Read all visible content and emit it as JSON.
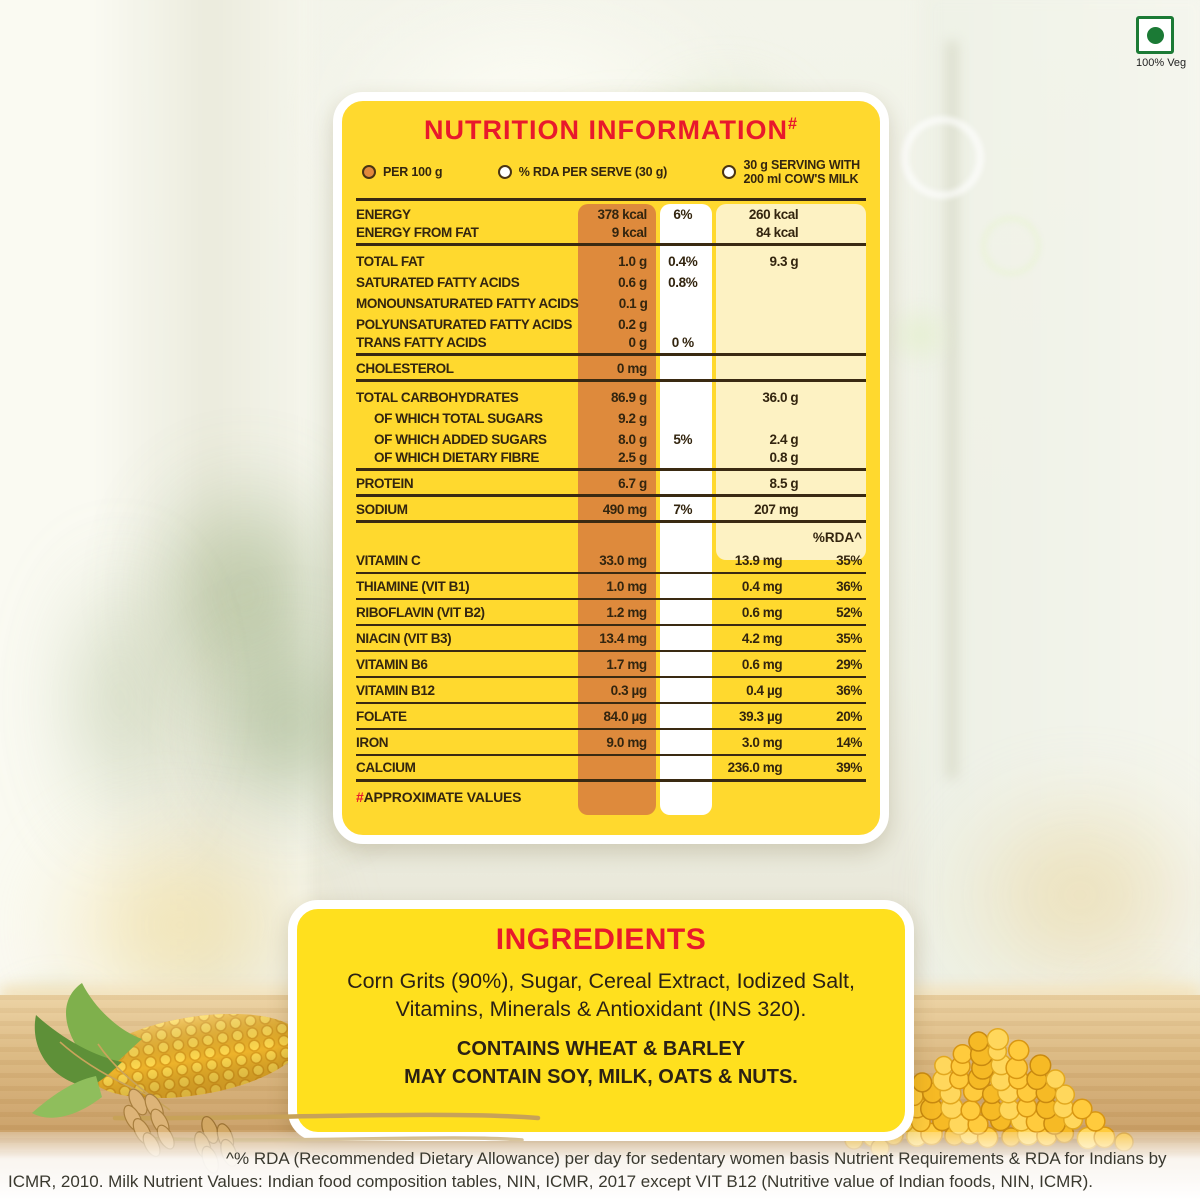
{
  "colors": {
    "accent_red": "#E8192C",
    "panel_yellow": "#FFD92E",
    "per100_band": "#DE8A3C",
    "milk_band": "#FDF2C3",
    "veg_green": "#1B7A35"
  },
  "veg_mark": {
    "label": "100% Veg"
  },
  "nutrition": {
    "title": "NUTRITION INFORMATION",
    "title_sup": "#",
    "legend": [
      {
        "swatch": "#E2893B",
        "label": "PER 100 g"
      },
      {
        "swatch": "#FFFFFF",
        "label": "% RDA PER SERVE (30 g)"
      },
      {
        "swatch": "#FFFFFF",
        "label": "30 g SERVING WITH\n200 ml COW'S MILK"
      }
    ],
    "rda_header": "%RDA^",
    "rows": [
      {
        "name": "ENERGY",
        "per100": "378 kcal",
        "rda": "6%",
        "milk": "260 kcal"
      },
      {
        "name": "ENERGY FROM FAT",
        "per100": "9 kcal",
        "milk": "84 kcal",
        "divider": true
      },
      {
        "name": "TOTAL FAT",
        "per100": "1.0 g",
        "rda": "0.4%",
        "milk": "9.3 g"
      },
      {
        "name": "SATURATED FATTY ACIDS",
        "per100": "0.6 g",
        "rda": "0.8%"
      },
      {
        "name": "MONOUNSATURATED FATTY ACIDS",
        "per100": "0.1 g"
      },
      {
        "name": "POLYUNSATURATED FATTY ACIDS",
        "per100": "0.2 g"
      },
      {
        "name": "TRANS FATTY ACIDS",
        "per100": "0 g",
        "rda": "0 %",
        "divider": true
      },
      {
        "name": "CHOLESTEROL",
        "per100": "0 mg",
        "divider": true
      },
      {
        "name": "TOTAL CARBOHYDRATES",
        "per100": "86.9 g",
        "milk": "36.0 g"
      },
      {
        "name": "OF WHICH TOTAL SUGARS",
        "indent": true,
        "per100": "9.2 g"
      },
      {
        "name": "OF WHICH ADDED SUGARS",
        "indent": true,
        "per100": "8.0 g",
        "rda": "5%",
        "milk": "2.4 g"
      },
      {
        "name": "OF WHICH DIETARY FIBRE",
        "indent": true,
        "per100": "2.5 g",
        "milk": "0.8 g",
        "divider": true
      },
      {
        "name": "PROTEIN",
        "per100": "6.7 g",
        "milk": "8.5 g",
        "divider": true
      },
      {
        "name": "SODIUM",
        "per100": "490 mg",
        "rda": "7%",
        "milk": "207 mg",
        "divider": true
      },
      {
        "name": "VITAMIN C",
        "vit": true,
        "header_before": true,
        "per100": "33.0 mg",
        "milk": "13.9 mg",
        "rda2": "35%",
        "divider": true
      },
      {
        "name": "THIAMINE (VIT B1)",
        "vit": true,
        "per100": "1.0 mg",
        "milk": "0.4 mg",
        "rda2": "36%",
        "divider": true
      },
      {
        "name": "RIBOFLAVIN (VIT B2)",
        "vit": true,
        "per100": "1.2 mg",
        "milk": "0.6 mg",
        "rda2": "52%",
        "divider": true
      },
      {
        "name": "NIACIN (VIT B3)",
        "vit": true,
        "per100": "13.4 mg",
        "milk": "4.2 mg",
        "rda2": "35%",
        "divider": true
      },
      {
        "name": "VITAMIN B6",
        "vit": true,
        "per100": "1.7 mg",
        "milk": "0.6 mg",
        "rda2": "29%",
        "divider": true
      },
      {
        "name": "VITAMIN B12",
        "vit": true,
        "per100": "0.3 µg",
        "milk": "0.4 µg",
        "rda2": "36%",
        "divider": true
      },
      {
        "name": "FOLATE",
        "vit": true,
        "per100": "84.0 µg",
        "milk": "39.3 µg",
        "rda2": "20%",
        "divider": true
      },
      {
        "name": "IRON",
        "vit": true,
        "per100": "9.0 mg",
        "milk": "3.0 mg",
        "rda2": "14%",
        "divider": true
      },
      {
        "name": "CALCIUM",
        "vit": true,
        "milk": "236.0 mg",
        "rda2": "39%",
        "divider": true
      }
    ],
    "note_symbol": "#",
    "note_text": "APPROXIMATE VALUES"
  },
  "ingredients": {
    "title": "INGREDIENTS",
    "text": "Corn Grits (90%), Sugar, Cereal Extract, Iodized Salt, Vitamins, Minerals & Antioxidant (INS 320).",
    "contains": "CONTAINS WHEAT & BARLEY",
    "may_contain": "MAY CONTAIN SOY, MILK, OATS & NUTS."
  },
  "footer": {
    "note": "^% RDA (Recommended Dietary Allowance) per day for sedentary women basis Nutrient Requirements & RDA for Indians by ICMR, 2010. Milk Nutrient Values: Indian food composition tables, NIN, ICMR, 2017 except VIT B12 (Nutritive value of Indian foods, NIN, ICMR)."
  }
}
